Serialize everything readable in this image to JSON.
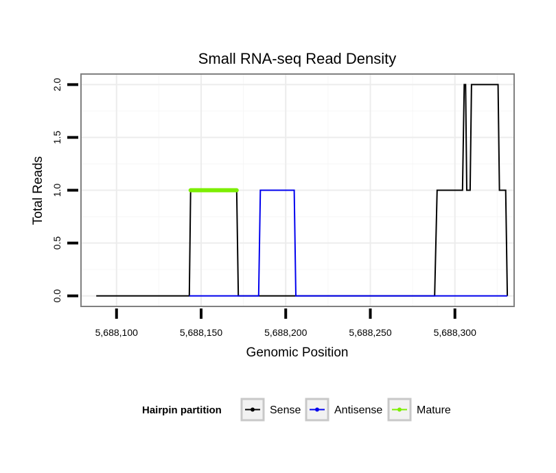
{
  "chart_data": {
    "type": "line",
    "title": "Small RNA-seq Read Density",
    "xlabel": "Genomic Position",
    "ylabel": "Total Reads",
    "xlim": [
      5688079,
      5688335
    ],
    "ylim": [
      -0.1,
      2.1
    ],
    "x_ticks": [
      5688100,
      5688150,
      5688200,
      5688250,
      5688300
    ],
    "x_tick_labels": [
      "5,688,100",
      "5,688,150",
      "5,688,200",
      "5,688,250",
      "5,688,300"
    ],
    "y_ticks": [
      0.0,
      0.5,
      1.0,
      1.5,
      2.0
    ],
    "y_tick_labels": [
      "0.0",
      "0.5",
      "1.0",
      "1.5",
      "2.0"
    ],
    "grid": true,
    "legend": {
      "title": "Hairpin partition",
      "position": "bottom",
      "entries": [
        {
          "name": "Sense",
          "color": "#000000"
        },
        {
          "name": "Antisense",
          "color": "#0000ee"
        },
        {
          "name": "Mature",
          "color": "#7cee00"
        }
      ]
    },
    "series": [
      {
        "name": "Sense",
        "color": "#000000",
        "x": [
          5688088,
          5688143,
          5688143.8,
          5688171,
          5688172,
          5688288,
          5688289.5,
          5688304.5,
          5688305.5,
          5688306.3,
          5688307,
          5688309,
          5688309.8,
          5688325.5,
          5688326.3,
          5688330,
          5688331
        ],
        "y": [
          0,
          0,
          1,
          1,
          0,
          0,
          1,
          1,
          2,
          2,
          1,
          1,
          2,
          2,
          1,
          1,
          0
        ]
      },
      {
        "name": "Antisense",
        "color": "#0000ee",
        "x": [
          5688143,
          5688184,
          5688185,
          5688205,
          5688206,
          5688331
        ],
        "y": [
          0,
          0,
          1,
          1,
          0,
          0
        ]
      },
      {
        "name": "Mature",
        "color": "#7cee00",
        "x": [
          5688143.8,
          5688171
        ],
        "y": [
          1,
          1
        ]
      }
    ]
  }
}
